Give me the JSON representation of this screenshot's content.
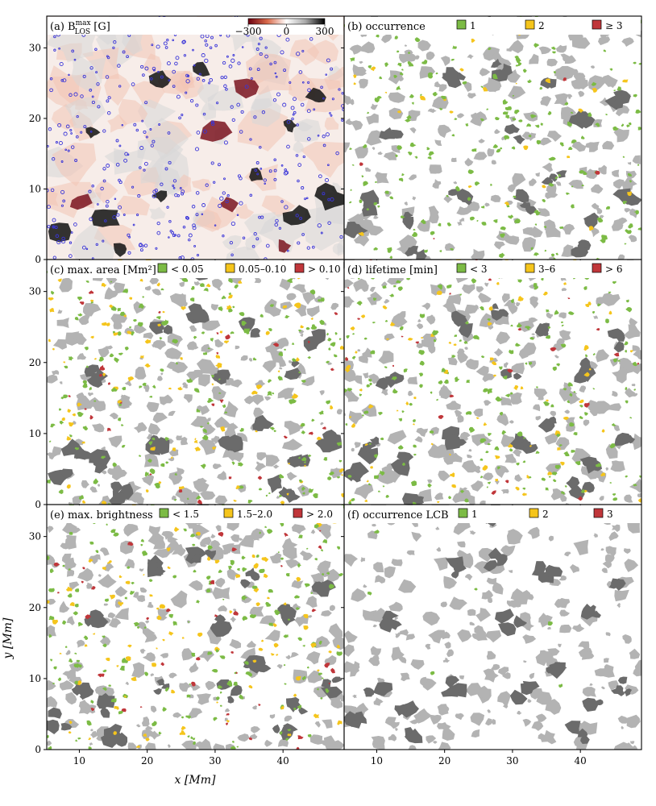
{
  "figure": {
    "x_axis_label": "x [Mm]",
    "y_axis_label": "y [Mm]",
    "x_ticks": [
      10,
      20,
      30,
      40
    ],
    "y_ticks": [
      0,
      10,
      20,
      30
    ],
    "x_range": [
      5.2,
      49
    ],
    "y_range": [
      0,
      34.5
    ]
  },
  "colors": {
    "green": "#7cbb45",
    "yellow": "#f5c51c",
    "red": "#c0363a",
    "gray_light": "#b3b3b3",
    "gray_dark": "#6b6b6b",
    "blue": "#3a35d8",
    "mag_neg": "#111111",
    "mag_pos": "#7a1420"
  },
  "panels": [
    {
      "id": "a",
      "title": "(a) B",
      "title_sup": "max",
      "title_sub": "LOS",
      "title_unit": " [G]",
      "type": "magnetogram",
      "colorbar": {
        "ticks": [
          "−300",
          "0",
          "300"
        ],
        "range": [
          -300,
          300
        ]
      }
    },
    {
      "id": "b",
      "title": "(b) occurrence",
      "type": "map",
      "legend": [
        {
          "label": "1",
          "color": "green"
        },
        {
          "label": "2",
          "color": "yellow"
        },
        {
          "label": "≥ 3",
          "color": "red"
        }
      ]
    },
    {
      "id": "c",
      "title": "(c) max. area [Mm²]",
      "type": "map",
      "legend": [
        {
          "label": "< 0.05",
          "color": "green"
        },
        {
          "label": "0.05–0.10",
          "color": "yellow"
        },
        {
          "label": "> 0.10",
          "color": "red"
        }
      ]
    },
    {
      "id": "d",
      "title": "(d) lifetime [min]",
      "type": "map",
      "legend": [
        {
          "label": "< 3",
          "color": "green"
        },
        {
          "label": "3–6",
          "color": "yellow"
        },
        {
          "label": "> 6",
          "color": "red"
        }
      ]
    },
    {
      "id": "e",
      "title": "(e) max. brightness",
      "type": "map",
      "legend": [
        {
          "label": "< 1.5",
          "color": "green"
        },
        {
          "label": "1.5–2.0",
          "color": "yellow"
        },
        {
          "label": "> 2.0",
          "color": "red"
        }
      ]
    },
    {
      "id": "f",
      "title": "(f) occurrence LCB",
      "type": "map",
      "legend": [
        {
          "label": "1",
          "color": "green"
        },
        {
          "label": "2",
          "color": "yellow"
        },
        {
          "label": "3",
          "color": "red"
        }
      ]
    }
  ]
}
